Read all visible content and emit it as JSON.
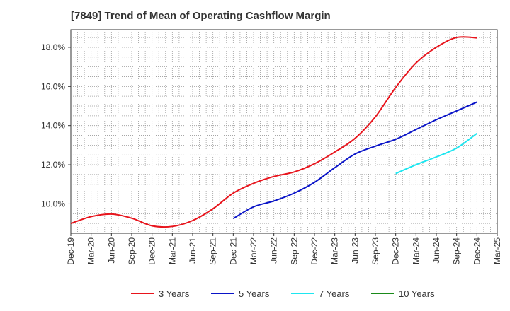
{
  "chart_data": {
    "type": "line",
    "title": "[7849]  Trend of Mean of Operating Cashflow Margin",
    "xlabel": "",
    "ylabel": "",
    "categories": [
      "Dec-19",
      "Mar-20",
      "Jun-20",
      "Sep-20",
      "Dec-20",
      "Mar-21",
      "Jun-21",
      "Sep-21",
      "Dec-21",
      "Mar-22",
      "Jun-22",
      "Sep-22",
      "Dec-22",
      "Mar-23",
      "Jun-23",
      "Sep-23",
      "Dec-23",
      "Mar-24",
      "Jun-24",
      "Sep-24",
      "Dec-24",
      "Mar-25"
    ],
    "ylim": [
      8.5,
      18.9
    ],
    "yticks": [
      10.0,
      12.0,
      14.0,
      16.0,
      18.0
    ],
    "ytick_labels": [
      "10.0%",
      "12.0%",
      "14.0%",
      "16.0%",
      "18.0%"
    ],
    "grid": true,
    "legend_position": "bottom",
    "series": [
      {
        "name": "3 Years",
        "color": "#e8141c",
        "values": [
          9.0,
          9.35,
          9.48,
          9.27,
          8.88,
          8.85,
          9.15,
          9.75,
          10.55,
          11.05,
          11.4,
          11.63,
          12.05,
          12.65,
          13.35,
          14.45,
          15.95,
          17.2,
          18.0,
          18.5,
          18.48,
          null
        ]
      },
      {
        "name": "5 Years",
        "color": "#0a14c8",
        "values": [
          null,
          null,
          null,
          null,
          null,
          null,
          null,
          null,
          9.25,
          9.85,
          10.15,
          10.55,
          11.1,
          11.85,
          12.55,
          12.95,
          13.3,
          13.8,
          14.3,
          14.75,
          15.2,
          null
        ]
      },
      {
        "name": "7 Years",
        "color": "#1ee6f0",
        "values": [
          null,
          null,
          null,
          null,
          null,
          null,
          null,
          null,
          null,
          null,
          null,
          null,
          null,
          null,
          null,
          null,
          11.55,
          12.0,
          12.4,
          12.85,
          13.6,
          null
        ]
      },
      {
        "name": "10 Years",
        "color": "#1a8a1a",
        "values": [
          null,
          null,
          null,
          null,
          null,
          null,
          null,
          null,
          null,
          null,
          null,
          null,
          null,
          null,
          null,
          null,
          null,
          null,
          null,
          null,
          null,
          null
        ]
      }
    ]
  }
}
